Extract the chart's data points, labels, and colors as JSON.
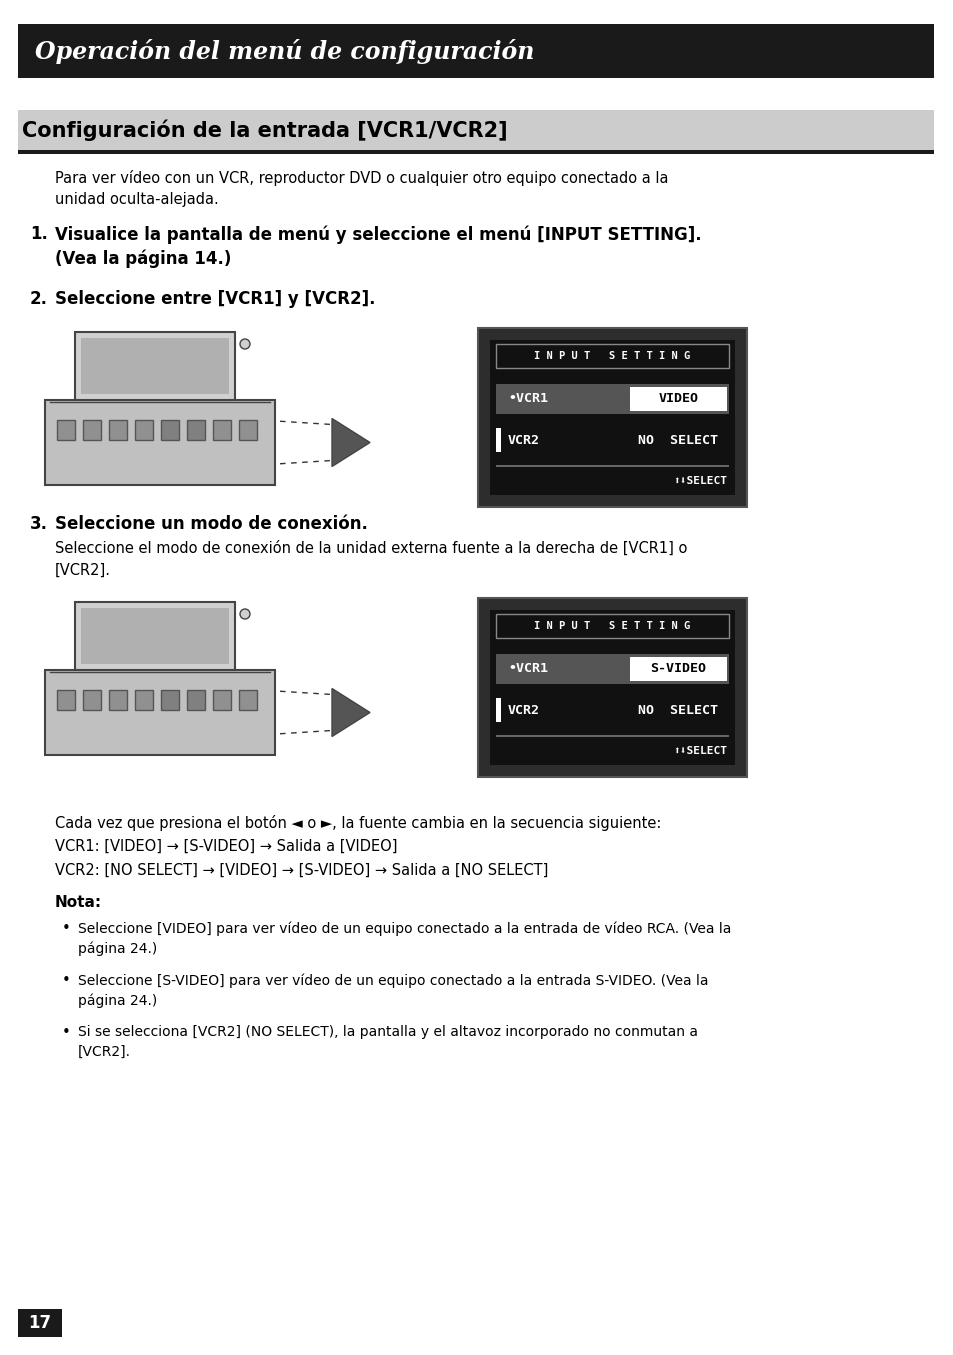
{
  "title_bar_text": "Operación del menú de configuración",
  "title_bar_bg": "#1a1a1a",
  "title_bar_text_color": "#ffffff",
  "section_title": "Configuración de la entrada [VCR1/VCR2]",
  "section_bg": "#cccccc",
  "body_bg": "#ffffff",
  "page_number": "17",
  "para1": "Para ver vídeo con un VCR, reproductor DVD o cualquier otro equipo conectado a la",
  "para1b": "unidad oculta-alejada.",
  "step1_bold": "Visualice la pantalla de menú y seleccione el menú [INPUT SETTING].",
  "step1_normal": "(Vea la página 14.)",
  "step2_bold": "Seleccione entre [VCR1] y [VCR2].",
  "step3_bold": "Seleccione un modo de conexión.",
  "step3_para": "Seleccione el modo de conexión de la unidad externa fuente a la derecha de [VCR1] o",
  "step3_parab": "[VCR2].",
  "sequence_line1": "Cada vez que presiona el botón ◄ o ►, la fuente cambia en la secuencia siguiente:",
  "sequence_line2": "VCR1: [VIDEO] → [S-VIDEO] → Salida a [VIDEO]",
  "sequence_line3": "VCR2: [NO SELECT] → [VIDEO] → [S-VIDEO] → Salida a [NO SELECT]",
  "nota_title": "Nota:",
  "nota1": "Seleccione [VIDEO] para ver vídeo de un equipo conectado a la entrada de vídeo RCA. (Vea la",
  "nota1b": "página 24.)",
  "nota2": "Seleccione [S-VIDEO] para ver vídeo de un equipo conectado a la entrada S-VIDEO. (Vea la",
  "nota2b": "página 24.)",
  "nota3": "Si se selecciona [VCR2] (NO SELECT), la pantalla y el altavoz incorporado no conmutan a",
  "nota3b": "[VCR2].",
  "screen1_title": "I N P U T   S E T T I N G",
  "screen1_row1_left": "•VCR1",
  "screen1_row1_right": "VIDEO",
  "screen1_row2_left": "VCR2",
  "screen1_row2_right": "NO  SELECT",
  "screen1_bottom": "⬆⬇SELECT",
  "screen2_title": "I N P U T   S E T T I N G",
  "screen2_row1_left": "•VCR1",
  "screen2_row1_right": "S-VIDEO",
  "screen2_row2_left": "VCR2",
  "screen2_row2_right": "NO  SELECT",
  "screen2_bottom": "⬆⬇SELECT"
}
